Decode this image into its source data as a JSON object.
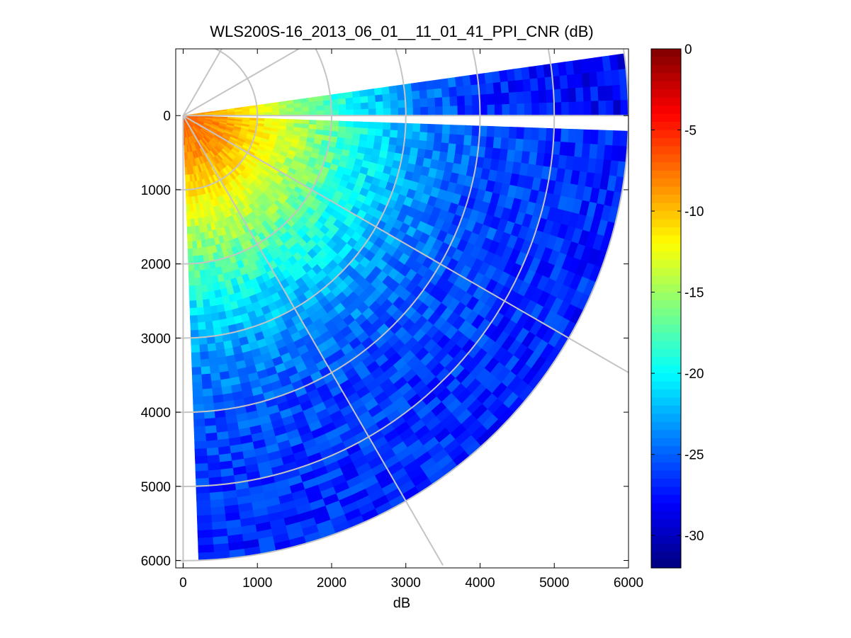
{
  "chart_data": {
    "type": "heatmap",
    "subtype": "polar-ppi-sector",
    "title": "WLS200S-16_2013_06_01__11_01_41_PPI_CNR (dB)",
    "xlabel": "dB",
    "ylabel": "",
    "xlim": [
      -100,
      6000
    ],
    "ylim": [
      -900,
      6100
    ],
    "y_direction": "reversed",
    "x_ticks": [
      0,
      1000,
      2000,
      3000,
      4000,
      5000,
      6000
    ],
    "x_tick_labels": [
      "0",
      "1000",
      "2000",
      "3000",
      "4000",
      "5000",
      "6000"
    ],
    "y_ticks": [
      0,
      1000,
      2000,
      3000,
      4000,
      5000,
      6000
    ],
    "y_tick_labels": [
      "0",
      "1000",
      "2000",
      "3000",
      "4000",
      "5000",
      "6000"
    ],
    "sector": {
      "origin": [
        0,
        0
      ],
      "max_range": 6000,
      "azimuth_start_deg": -8,
      "azimuth_end_deg": 88,
      "angle_convention": "clockwise from +x axis (screen)",
      "blocked_wedge_deg": [
        -1,
        2
      ],
      "range_gate": 100,
      "azimuth_step_deg": 2
    },
    "cnr_profile": {
      "range_m": [
        0,
        500,
        1000,
        1500,
        2000,
        2500,
        3000,
        4000,
        5000,
        6000
      ],
      "cnr_db": [
        -7,
        -8.5,
        -11,
        -14,
        -17,
        -20,
        -22.5,
        -25.5,
        -26.5,
        -27
      ]
    },
    "grid": {
      "range_rings": [
        1000,
        2000,
        3000,
        4000,
        5000,
        6000
      ],
      "spokes_deg": [
        -60,
        -30,
        0,
        30,
        60,
        90
      ]
    },
    "colorbar": {
      "colormap": "jet",
      "clim": [
        -32,
        0
      ],
      "ticks": [
        0,
        -5,
        -10,
        -15,
        -20,
        -25,
        -30
      ],
      "tick_labels": [
        "0",
        "-5",
        "-10",
        "-15",
        "-20",
        "-25",
        "-30"
      ]
    }
  }
}
